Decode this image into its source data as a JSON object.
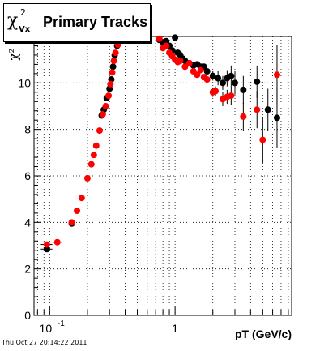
{
  "title": {
    "symbol": "χ",
    "superscript": "2",
    "subscript": "Vx",
    "text": "Primary Tracks"
  },
  "footer_timestamp": "Thu Oct 27 20:14:22 2011",
  "chart_data": {
    "type": "scatter",
    "title": "Primary Tracks",
    "xlabel": "pT (GeV/c)",
    "ylabel": "χ²",
    "x_scale": "log",
    "xlim": [
      0.075,
      8.5
    ],
    "ylim": [
      0,
      12
    ],
    "y_ticks": [
      0,
      2,
      4,
      6,
      8,
      10
    ],
    "x_tick_labels": [
      {
        "value": 0.1,
        "base": "10",
        "exp": "-1"
      },
      {
        "value": 1,
        "label": "1"
      }
    ],
    "grid": true,
    "colors": {
      "series_black": "#000000",
      "series_red": "#ff0000"
    },
    "series": [
      {
        "color": "#000000",
        "points": [
          [
            0.095,
            2.85,
            0.01,
            0
          ],
          [
            0.15,
            3.95,
            0,
            0
          ],
          [
            0.26,
            8.6,
            0,
            0
          ],
          [
            0.27,
            8.85,
            0,
            0
          ],
          [
            0.285,
            9.35,
            0,
            0
          ],
          [
            0.3,
            9.75,
            0,
            0
          ],
          [
            0.31,
            10.15,
            0,
            0
          ],
          [
            0.32,
            10.7,
            0,
            0
          ],
          [
            0.33,
            11.2,
            0,
            0
          ],
          [
            0.345,
            11.6,
            0,
            0
          ],
          [
            0.36,
            11.85,
            0,
            0
          ],
          [
            0.75,
            11.85,
            0,
            0
          ],
          [
            0.8,
            11.75,
            0,
            0
          ],
          [
            0.85,
            11.8,
            0,
            0
          ],
          [
            0.9,
            11.6,
            0,
            0
          ],
          [
            0.95,
            11.4,
            0,
            0
          ],
          [
            1.0,
            11.95,
            0,
            0
          ],
          [
            1.05,
            11.3,
            0,
            0
          ],
          [
            1.1,
            11.2,
            0,
            0
          ],
          [
            1.15,
            11.05,
            0,
            0
          ],
          [
            1.2,
            10.95,
            0,
            0
          ],
          [
            1.3,
            10.85,
            0,
            0
          ],
          [
            1.4,
            10.75,
            0,
            0
          ],
          [
            1.5,
            10.8,
            0,
            0
          ],
          [
            1.6,
            10.7,
            0,
            0
          ],
          [
            1.7,
            10.7,
            0,
            0
          ],
          [
            1.8,
            10.5,
            0,
            0
          ],
          [
            2.0,
            10.3,
            0,
            0.2
          ],
          [
            2.2,
            10.2,
            0,
            0.3
          ],
          [
            2.4,
            10.0,
            0,
            0.3
          ],
          [
            2.6,
            10.2,
            0,
            0.35
          ],
          [
            2.8,
            10.3,
            0,
            0.45
          ],
          [
            3.0,
            10.0,
            0,
            0.5
          ],
          [
            3.5,
            9.7,
            0,
            0.6
          ],
          [
            4.5,
            10.05,
            0,
            0.7
          ],
          [
            5.5,
            8.85,
            0,
            0.9
          ],
          [
            6.5,
            8.5,
            0,
            1.3
          ]
        ]
      },
      {
        "color": "#ff0000",
        "points": [
          [
            0.095,
            3.05,
            0.01,
            0
          ],
          [
            0.115,
            3.15,
            0.01,
            0
          ],
          [
            0.15,
            4.0,
            0,
            0
          ],
          [
            0.165,
            4.5,
            0,
            0
          ],
          [
            0.18,
            5.05,
            0,
            0
          ],
          [
            0.2,
            5.9,
            0,
            0
          ],
          [
            0.215,
            6.5,
            0,
            0
          ],
          [
            0.225,
            6.9,
            0,
            0
          ],
          [
            0.235,
            7.3,
            0,
            0
          ],
          [
            0.25,
            7.95,
            0,
            0
          ],
          [
            0.265,
            8.65,
            0,
            0
          ],
          [
            0.28,
            9.0,
            0,
            0
          ],
          [
            0.295,
            9.45,
            0,
            0
          ],
          [
            0.305,
            9.95,
            0,
            0
          ],
          [
            0.315,
            10.45,
            0,
            0
          ],
          [
            0.325,
            10.95,
            0,
            0
          ],
          [
            0.335,
            11.3,
            0,
            0
          ],
          [
            0.35,
            11.65,
            0,
            0
          ],
          [
            0.75,
            11.9,
            0,
            0
          ],
          [
            0.8,
            11.5,
            0,
            0
          ],
          [
            0.85,
            11.6,
            0,
            0
          ],
          [
            0.9,
            11.3,
            0,
            0
          ],
          [
            0.95,
            11.15,
            0,
            0
          ],
          [
            1.0,
            11.0,
            0,
            0
          ],
          [
            1.05,
            10.9,
            0,
            0
          ],
          [
            1.1,
            10.95,
            0,
            0
          ],
          [
            1.2,
            10.7,
            0,
            0
          ],
          [
            1.3,
            10.85,
            0,
            0
          ],
          [
            1.4,
            10.5,
            0,
            0
          ],
          [
            1.5,
            10.35,
            0,
            0
          ],
          [
            1.6,
            10.55,
            0,
            0
          ],
          [
            1.7,
            10.25,
            0,
            0
          ],
          [
            1.8,
            10.15,
            0,
            0
          ],
          [
            2.0,
            9.6,
            0,
            0.2
          ],
          [
            2.1,
            9.65,
            0,
            0.2
          ],
          [
            2.4,
            9.3,
            0,
            0.3
          ],
          [
            2.6,
            9.4,
            0,
            0.3
          ],
          [
            2.8,
            9.45,
            0,
            0.4
          ],
          [
            3.5,
            8.55,
            0,
            0.6
          ],
          [
            4.5,
            8.85,
            0,
            0.8
          ],
          [
            5.0,
            7.55,
            0,
            1.0
          ],
          [
            6.5,
            10.35,
            0,
            1.3
          ]
        ]
      }
    ]
  }
}
